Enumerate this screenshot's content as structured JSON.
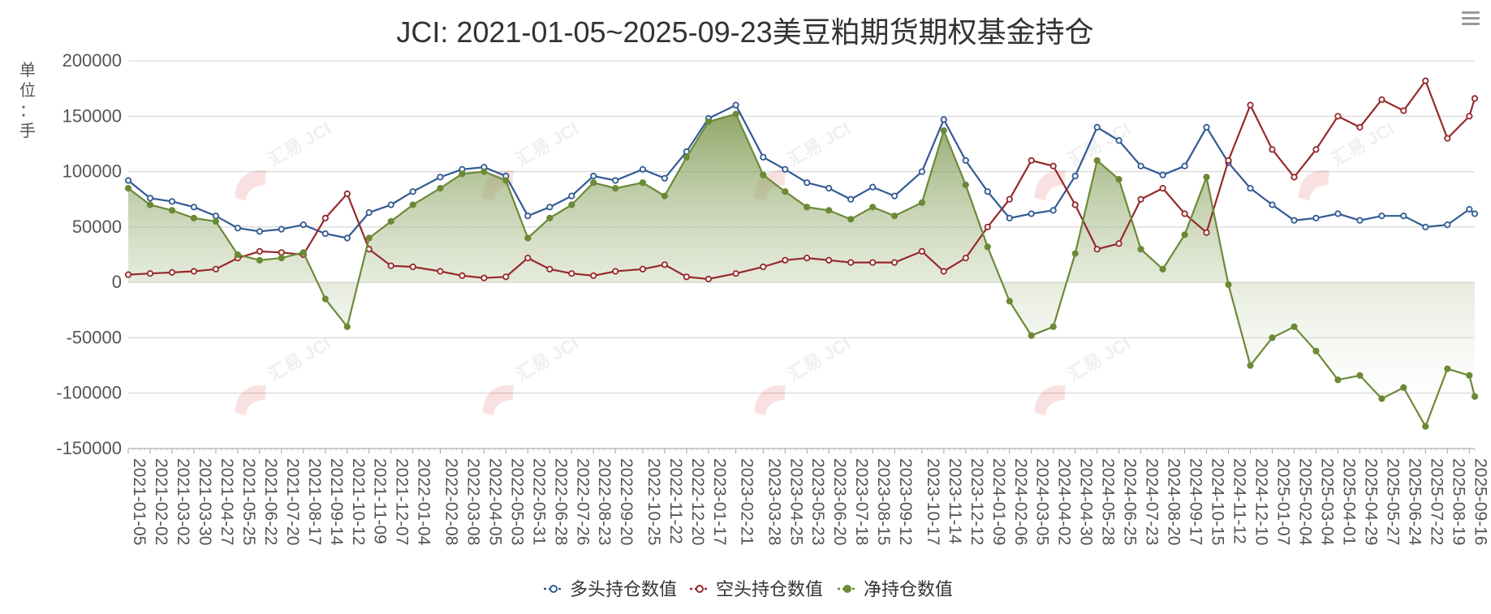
{
  "chart_data": {
    "type": "line",
    "title": "JCI: 2021-01-05~2025-09-23美豆粕期货期权基金持仓",
    "unit_label": "单位：手",
    "ylim": [
      -150000,
      200000
    ],
    "y_ticks": [
      "200000",
      "150000",
      "100000",
      "50000",
      "0",
      "-50000",
      "-100000",
      "-150000"
    ],
    "x_tick_labels": [
      "2021-01-05",
      "2021-02-02",
      "2021-03-02",
      "2021-03-30",
      "2021-04-27",
      "2021-05-25",
      "2021-06-22",
      "2021-07-20",
      "2021-08-17",
      "2021-09-14",
      "2021-10-12",
      "2021-11-09",
      "2021-12-07",
      "2022-01-04",
      "2022-02-08",
      "2022-03-08",
      "2022-04-05",
      "2022-05-03",
      "2022-05-31",
      "2022-06-28",
      "2022-07-26",
      "2022-08-23",
      "2022-09-20",
      "2022-10-25",
      "2022-11-22",
      "2022-12-20",
      "2023-01-17",
      "2023-02-21",
      "2023-03-28",
      "2023-04-25",
      "2023-05-23",
      "2023-06-20",
      "2023-07-18",
      "2023-08-15",
      "2023-09-12",
      "2023-10-17",
      "2023-11-14",
      "2023-12-12",
      "2024-01-09",
      "2024-02-06",
      "2024-03-05",
      "2024-04-02",
      "2024-04-30",
      "2024-05-28",
      "2024-06-25",
      "2024-07-23",
      "2024-08-20",
      "2024-09-17",
      "2024-10-15",
      "2024-11-12",
      "2024-12-10",
      "2025-01-07",
      "2025-02-04",
      "2025-03-04",
      "2025-04-01",
      "2025-04-29",
      "2025-05-27",
      "2025-06-24",
      "2025-07-22",
      "2025-08-19",
      "2025-09-16"
    ],
    "series_long_key": [
      [
        "2021-01-05",
        92000
      ],
      [
        "2021-02-02",
        76000
      ],
      [
        "2021-03-02",
        73000
      ],
      [
        "2021-03-30",
        68000
      ],
      [
        "2021-04-27",
        60000
      ],
      [
        "2021-05-25",
        49000
      ],
      [
        "2021-06-22",
        46000
      ],
      [
        "2021-07-20",
        48000
      ],
      [
        "2021-08-17",
        52000
      ],
      [
        "2021-09-14",
        44000
      ],
      [
        "2021-10-12",
        40000
      ],
      [
        "2021-11-09",
        63000
      ],
      [
        "2021-12-07",
        70000
      ],
      [
        "2022-01-04",
        82000
      ],
      [
        "2022-02-08",
        95000
      ],
      [
        "2022-03-08",
        102000
      ],
      [
        "2022-04-05",
        104000
      ],
      [
        "2022-05-03",
        96000
      ],
      [
        "2022-05-31",
        60000
      ],
      [
        "2022-06-28",
        68000
      ],
      [
        "2022-07-26",
        78000
      ],
      [
        "2022-08-23",
        96000
      ],
      [
        "2022-09-20",
        92000
      ],
      [
        "2022-10-25",
        102000
      ],
      [
        "2022-11-22",
        94000
      ],
      [
        "2022-12-20",
        118000
      ],
      [
        "2023-01-17",
        148000
      ],
      [
        "2023-02-21",
        160000
      ],
      [
        "2023-03-28",
        113000
      ],
      [
        "2023-04-25",
        102000
      ],
      [
        "2023-05-23",
        90000
      ],
      [
        "2023-06-20",
        85000
      ],
      [
        "2023-07-18",
        75000
      ],
      [
        "2023-08-15",
        86000
      ],
      [
        "2023-09-12",
        78000
      ],
      [
        "2023-10-17",
        100000
      ],
      [
        "2023-11-14",
        147000
      ],
      [
        "2023-12-12",
        110000
      ],
      [
        "2024-01-09",
        82000
      ],
      [
        "2024-02-06",
        58000
      ],
      [
        "2024-03-05",
        62000
      ],
      [
        "2024-04-02",
        65000
      ],
      [
        "2024-04-30",
        96000
      ],
      [
        "2024-05-28",
        140000
      ],
      [
        "2024-06-25",
        128000
      ],
      [
        "2024-07-23",
        105000
      ],
      [
        "2024-08-20",
        97000
      ],
      [
        "2024-09-17",
        105000
      ],
      [
        "2024-10-15",
        140000
      ],
      [
        "2024-11-12",
        108000
      ],
      [
        "2024-12-10",
        85000
      ],
      [
        "2025-01-07",
        70000
      ],
      [
        "2025-02-04",
        56000
      ],
      [
        "2025-03-04",
        58000
      ],
      [
        "2025-04-01",
        62000
      ],
      [
        "2025-04-29",
        56000
      ],
      [
        "2025-05-27",
        60000
      ],
      [
        "2025-06-24",
        60000
      ],
      [
        "2025-07-22",
        50000
      ],
      [
        "2025-08-19",
        52000
      ],
      [
        "2025-09-16",
        66000
      ],
      [
        "2025-09-23",
        62000
      ]
    ],
    "series_short_key": [
      [
        "2021-01-05",
        7000
      ],
      [
        "2021-02-02",
        8000
      ],
      [
        "2021-03-02",
        9000
      ],
      [
        "2021-03-30",
        10000
      ],
      [
        "2021-04-27",
        12000
      ],
      [
        "2021-05-25",
        22000
      ],
      [
        "2021-06-22",
        28000
      ],
      [
        "2021-07-20",
        27000
      ],
      [
        "2021-08-17",
        25000
      ],
      [
        "2021-09-14",
        58000
      ],
      [
        "2021-10-12",
        80000
      ],
      [
        "2021-11-09",
        30000
      ],
      [
        "2021-12-07",
        15000
      ],
      [
        "2022-01-04",
        14000
      ],
      [
        "2022-02-08",
        10000
      ],
      [
        "2022-03-08",
        6000
      ],
      [
        "2022-04-05",
        4000
      ],
      [
        "2022-05-03",
        5000
      ],
      [
        "2022-05-31",
        22000
      ],
      [
        "2022-06-28",
        12000
      ],
      [
        "2022-07-26",
        8000
      ],
      [
        "2022-08-23",
        6000
      ],
      [
        "2022-09-20",
        10000
      ],
      [
        "2022-10-25",
        12000
      ],
      [
        "2022-11-22",
        16000
      ],
      [
        "2022-12-20",
        5000
      ],
      [
        "2023-01-17",
        3000
      ],
      [
        "2023-02-21",
        8000
      ],
      [
        "2023-03-28",
        14000
      ],
      [
        "2023-04-25",
        20000
      ],
      [
        "2023-05-23",
        22000
      ],
      [
        "2023-06-20",
        20000
      ],
      [
        "2023-07-18",
        18000
      ],
      [
        "2023-08-15",
        18000
      ],
      [
        "2023-09-12",
        18000
      ],
      [
        "2023-10-17",
        28000
      ],
      [
        "2023-11-14",
        10000
      ],
      [
        "2023-12-12",
        22000
      ],
      [
        "2024-01-09",
        50000
      ],
      [
        "2024-02-06",
        75000
      ],
      [
        "2024-03-05",
        110000
      ],
      [
        "2024-04-02",
        105000
      ],
      [
        "2024-04-30",
        70000
      ],
      [
        "2024-05-28",
        30000
      ],
      [
        "2024-06-25",
        35000
      ],
      [
        "2024-07-23",
        75000
      ],
      [
        "2024-08-20",
        85000
      ],
      [
        "2024-09-17",
        62000
      ],
      [
        "2024-10-15",
        45000
      ],
      [
        "2024-11-12",
        110000
      ],
      [
        "2024-12-10",
        160000
      ],
      [
        "2025-01-07",
        120000
      ],
      [
        "2025-02-04",
        95000
      ],
      [
        "2025-03-04",
        120000
      ],
      [
        "2025-04-01",
        150000
      ],
      [
        "2025-04-29",
        140000
      ],
      [
        "2025-05-27",
        165000
      ],
      [
        "2025-06-24",
        155000
      ],
      [
        "2025-07-22",
        182000
      ],
      [
        "2025-08-19",
        130000
      ],
      [
        "2025-09-16",
        150000
      ],
      [
        "2025-09-23",
        166000
      ]
    ],
    "series_net_key": [
      [
        "2021-01-05",
        85000
      ],
      [
        "2021-02-02",
        70000
      ],
      [
        "2021-03-02",
        65000
      ],
      [
        "2021-03-30",
        58000
      ],
      [
        "2021-04-27",
        55000
      ],
      [
        "2021-05-25",
        25000
      ],
      [
        "2021-06-22",
        20000
      ],
      [
        "2021-07-20",
        22000
      ],
      [
        "2021-08-17",
        27000
      ],
      [
        "2021-09-14",
        -15000
      ],
      [
        "2021-10-12",
        -40000
      ],
      [
        "2021-11-09",
        40000
      ],
      [
        "2021-12-07",
        55000
      ],
      [
        "2022-01-04",
        70000
      ],
      [
        "2022-02-08",
        85000
      ],
      [
        "2022-03-08",
        98000
      ],
      [
        "2022-04-05",
        100000
      ],
      [
        "2022-05-03",
        92000
      ],
      [
        "2022-05-31",
        40000
      ],
      [
        "2022-06-28",
        58000
      ],
      [
        "2022-07-26",
        70000
      ],
      [
        "2022-08-23",
        90000
      ],
      [
        "2022-09-20",
        85000
      ],
      [
        "2022-10-25",
        90000
      ],
      [
        "2022-11-22",
        78000
      ],
      [
        "2022-12-20",
        113000
      ],
      [
        "2023-01-17",
        145000
      ],
      [
        "2023-02-21",
        152000
      ],
      [
        "2023-03-28",
        97000
      ],
      [
        "2023-04-25",
        82000
      ],
      [
        "2023-05-23",
        68000
      ],
      [
        "2023-06-20",
        65000
      ],
      [
        "2023-07-18",
        57000
      ],
      [
        "2023-08-15",
        68000
      ],
      [
        "2023-09-12",
        60000
      ],
      [
        "2023-10-17",
        72000
      ],
      [
        "2023-11-14",
        137000
      ],
      [
        "2023-12-12",
        88000
      ],
      [
        "2024-01-09",
        32000
      ],
      [
        "2024-02-06",
        -17000
      ],
      [
        "2024-03-05",
        -48000
      ],
      [
        "2024-04-02",
        -40000
      ],
      [
        "2024-04-30",
        26000
      ],
      [
        "2024-05-28",
        110000
      ],
      [
        "2024-06-25",
        93000
      ],
      [
        "2024-07-23",
        30000
      ],
      [
        "2024-08-20",
        12000
      ],
      [
        "2024-09-17",
        43000
      ],
      [
        "2024-10-15",
        95000
      ],
      [
        "2024-11-12",
        -2000
      ],
      [
        "2024-12-10",
        -75000
      ],
      [
        "2025-01-07",
        -50000
      ],
      [
        "2025-02-04",
        -40000
      ],
      [
        "2025-03-04",
        -62000
      ],
      [
        "2025-04-01",
        -88000
      ],
      [
        "2025-04-29",
        -84000
      ],
      [
        "2025-05-27",
        -105000
      ],
      [
        "2025-06-24",
        -95000
      ],
      [
        "2025-07-22",
        -130000
      ],
      [
        "2025-08-19",
        -78000
      ],
      [
        "2025-09-16",
        -84000
      ],
      [
        "2025-09-23",
        -103000
      ]
    ],
    "series": [
      {
        "name": "多头持仓数值",
        "color": "#325a93",
        "key": "series_long_key"
      },
      {
        "name": "空头持仓数值",
        "color": "#96292b",
        "key": "series_short_key"
      },
      {
        "name": "净持仓数值",
        "color": "#6b8a36",
        "key": "series_net_key"
      }
    ],
    "area_fill": {
      "top": "#6b8a36",
      "bottom": "#ffffff"
    },
    "grid": true,
    "legend_position": "bottom-center",
    "watermark": "汇易 JCI"
  },
  "toolbar": {
    "menu_icon": "hamburger-menu-icon"
  }
}
